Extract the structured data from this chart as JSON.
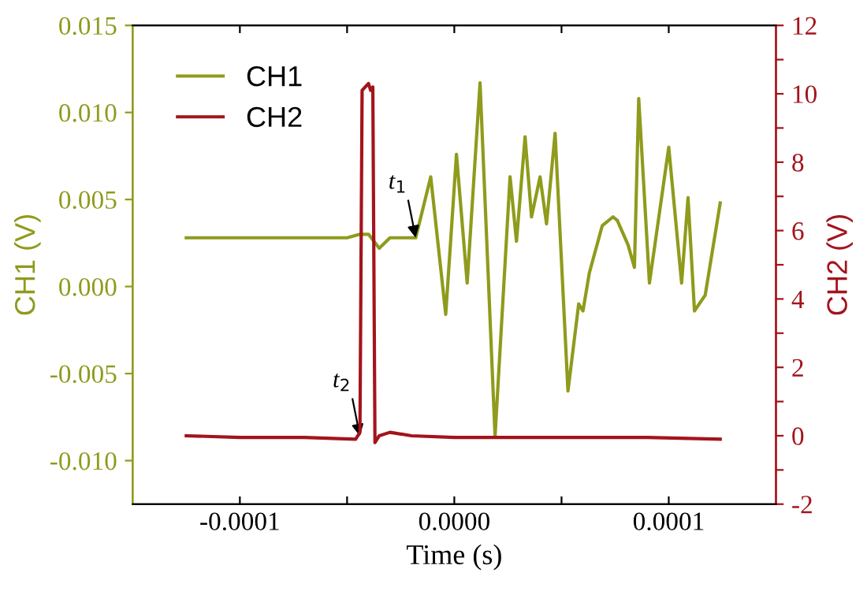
{
  "chart_data": {
    "type": "line",
    "xlabel": "Time (s)",
    "ylabel": "CH1 (V)",
    "y2label": "CH2 (V)",
    "xlim": [
      -0.00015,
      0.00015
    ],
    "xticks": [
      {
        "value": -0.0001,
        "label": "-0.0001"
      },
      {
        "value": -5e-05,
        "label": null
      },
      {
        "value": 0,
        "label": "0.0000"
      },
      {
        "value": 5e-05,
        "label": null
      },
      {
        "value": 0.0001,
        "label": "0.0001"
      }
    ],
    "ylim": [
      -0.0125,
      0.015
    ],
    "yticks": [
      {
        "value": -0.01,
        "label": "-0.010"
      },
      {
        "value": -0.005,
        "label": "-0.005"
      },
      {
        "value": 0,
        "label": "0.000"
      },
      {
        "value": 0.005,
        "label": "0.005"
      },
      {
        "value": 0.01,
        "label": "0.010"
      },
      {
        "value": 0.015,
        "label": "0.015"
      }
    ],
    "y2lim": [
      -2,
      12
    ],
    "y2ticks": [
      -2,
      {
        "value": -1,
        "label": null
      },
      0,
      {
        "value": 1,
        "label": null
      },
      2,
      {
        "value": 3,
        "label": null
      },
      4,
      {
        "value": 5,
        "label": null
      },
      6,
      {
        "value": 7,
        "label": null
      },
      8,
      {
        "value": 9,
        "label": null
      },
      10,
      {
        "value": 11,
        "label": null
      },
      12
    ],
    "legend": "top left",
    "grid": false,
    "marker": "none",
    "line_style": "solid",
    "series": [
      {
        "name": "CH1",
        "color": "#8f9b1c",
        "x": [
          -0.000125,
          -0.0001,
          -7e-05,
          -5e-05,
          -4.4e-05,
          -4e-05,
          -3.5e-05,
          -3e-05,
          -1.8e-05,
          -1.1e-05,
          -4e-06,
          1e-06,
          6e-06,
          1.2e-05,
          1.9e-05,
          2.6e-05,
          2.9e-05,
          3.3e-05,
          3.6e-05,
          4e-05,
          4.3e-05,
          4.7e-05,
          5.3e-05,
          5.8e-05,
          6e-05,
          6.3e-05,
          6.9e-05,
          7.4e-05,
          7.6e-05,
          8.1e-05,
          8.4e-05,
          8.6e-05,
          9.1e-05,
          0.0001,
          0.000106,
          0.000109,
          0.000112,
          0.000117,
          0.000124
        ],
        "values": [
          0.0028,
          0.0028,
          0.0028,
          0.0028,
          0.003,
          0.003,
          0.0022,
          0.0028,
          0.0028,
          0.0063,
          -0.0016,
          0.0076,
          0.0002,
          0.0117,
          -0.0086,
          0.0063,
          0.0026,
          0.0086,
          0.004,
          0.0063,
          0.0036,
          0.0088,
          -0.006,
          -0.001,
          -0.0014,
          0.0008,
          0.0035,
          0.004,
          0.0038,
          0.0024,
          0.0011,
          0.0108,
          0.0002,
          0.008,
          0.0002,
          0.0051,
          -0.0014,
          -0.0005,
          0.0048
        ]
      },
      {
        "name": "CH2",
        "color": "#a3141c",
        "axis": "y2",
        "x": [
          -0.000125,
          -0.0001,
          -7e-05,
          -4.6e-05,
          -4.4e-05,
          -4.3e-05,
          -4e-05,
          -3.9e-05,
          -3.8e-05,
          -3.7e-05,
          -3.5e-05,
          -3e-05,
          -2e-05,
          0,
          3e-05,
          6e-05,
          9e-05,
          0.000124
        ],
        "values": [
          0,
          -0.05,
          -0.05,
          -0.1,
          0.1,
          10.1,
          10.3,
          10.1,
          10.2,
          -0.2,
          0,
          0.1,
          0,
          -0.05,
          -0.05,
          -0.05,
          -0.05,
          -0.1
        ]
      }
    ],
    "annotations": [
      {
        "text": "t$_{1}$",
        "x": -1.8e-05,
        "y": 0.0028
      },
      {
        "text": "t$_{2}$",
        "x": -4.4e-05,
        "y": -0.0086
      }
    ]
  }
}
